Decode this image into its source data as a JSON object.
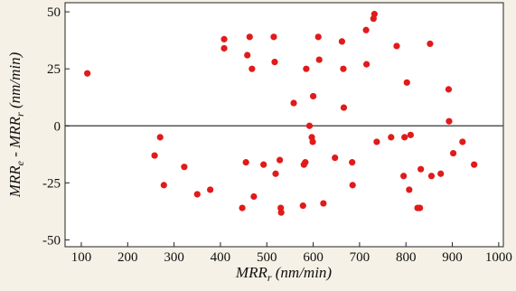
{
  "chart_data": {
    "type": "scatter",
    "xlabel": "MRR",
    "xlabel_sub": "r",
    "xlabel_unit": " (nm/min)",
    "ylabel_parts": [
      "MRR",
      "e",
      " - MRR",
      "r",
      " (nm/min)"
    ],
    "xlim": [
      65,
      1010
    ],
    "ylim": [
      -53,
      54
    ],
    "xticks": [
      100,
      200,
      300,
      400,
      500,
      600,
      700,
      800,
      900,
      1000
    ],
    "yticks": [
      -50,
      -25,
      0,
      25,
      50
    ],
    "reference_line_y": 0,
    "grid": false,
    "colors": {
      "point": "#e11a1a",
      "plot_background": "#ffffff",
      "page_background": "#f5f1e6",
      "zero_line": "#555555"
    },
    "points": [
      {
        "x": 113,
        "y": 23
      },
      {
        "x": 258,
        "y": -13
      },
      {
        "x": 270,
        "y": -5
      },
      {
        "x": 278,
        "y": -26
      },
      {
        "x": 322,
        "y": -18
      },
      {
        "x": 350,
        "y": -30
      },
      {
        "x": 378,
        "y": -28
      },
      {
        "x": 408,
        "y": 38
      },
      {
        "x": 408,
        "y": 34
      },
      {
        "x": 447,
        "y": -36
      },
      {
        "x": 455,
        "y": -16
      },
      {
        "x": 458,
        "y": 31
      },
      {
        "x": 463,
        "y": 39
      },
      {
        "x": 468,
        "y": 25
      },
      {
        "x": 472,
        "y": -31
      },
      {
        "x": 493,
        "y": -17
      },
      {
        "x": 515,
        "y": 39
      },
      {
        "x": 517,
        "y": 28
      },
      {
        "x": 519,
        "y": -21
      },
      {
        "x": 528,
        "y": -15
      },
      {
        "x": 530,
        "y": -36
      },
      {
        "x": 531,
        "y": -38
      },
      {
        "x": 558,
        "y": 10
      },
      {
        "x": 578,
        "y": -35
      },
      {
        "x": 580,
        "y": -17
      },
      {
        "x": 583,
        "y": -16
      },
      {
        "x": 585,
        "y": 25
      },
      {
        "x": 592,
        "y": 0
      },
      {
        "x": 597,
        "y": -5
      },
      {
        "x": 599,
        "y": -7
      },
      {
        "x": 600,
        "y": 13
      },
      {
        "x": 611,
        "y": 39
      },
      {
        "x": 613,
        "y": 29
      },
      {
        "x": 622,
        "y": -34
      },
      {
        "x": 647,
        "y": -14
      },
      {
        "x": 662,
        "y": 37
      },
      {
        "x": 665,
        "y": 25
      },
      {
        "x": 666,
        "y": 8
      },
      {
        "x": 684,
        "y": -16
      },
      {
        "x": 685,
        "y": -26
      },
      {
        "x": 714,
        "y": 42
      },
      {
        "x": 715,
        "y": 27
      },
      {
        "x": 730,
        "y": 47
      },
      {
        "x": 732,
        "y": 49
      },
      {
        "x": 737,
        "y": -7
      },
      {
        "x": 768,
        "y": -5
      },
      {
        "x": 780,
        "y": 35
      },
      {
        "x": 795,
        "y": -22
      },
      {
        "x": 797,
        "y": -5
      },
      {
        "x": 802,
        "y": 19
      },
      {
        "x": 807,
        "y": -28
      },
      {
        "x": 810,
        "y": -4
      },
      {
        "x": 825,
        "y": -36
      },
      {
        "x": 830,
        "y": -36
      },
      {
        "x": 832,
        "y": -19
      },
      {
        "x": 852,
        "y": 36
      },
      {
        "x": 855,
        "y": -22
      },
      {
        "x": 875,
        "y": -21
      },
      {
        "x": 892,
        "y": 16
      },
      {
        "x": 893,
        "y": 2
      },
      {
        "x": 902,
        "y": -12
      },
      {
        "x": 922,
        "y": -7
      },
      {
        "x": 947,
        "y": -17
      }
    ]
  }
}
